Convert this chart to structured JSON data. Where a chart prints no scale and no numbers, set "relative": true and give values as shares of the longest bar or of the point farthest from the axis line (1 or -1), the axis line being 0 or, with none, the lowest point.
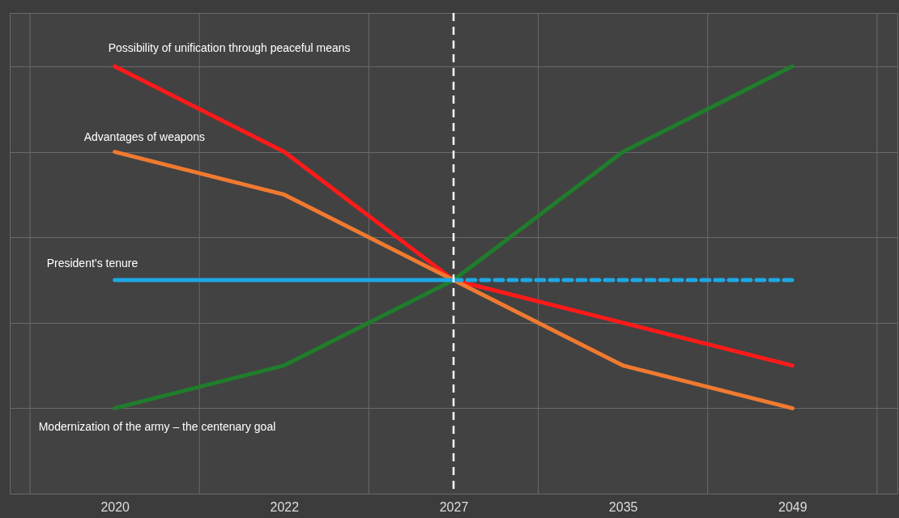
{
  "chart_data": {
    "type": "line",
    "relative": true,
    "categories": [
      "2020",
      "2022",
      "2027",
      "2035",
      "2049"
    ],
    "series": [
      {
        "name": "Possibility of unification through peaceful means",
        "color": "#ff1a1a",
        "values": [
          1,
          0.8,
          0.5,
          0.4,
          0.3
        ]
      },
      {
        "name": "Advantages of weapons",
        "color": "#f07a30",
        "values": [
          0.8,
          0.7,
          0.5,
          0.3,
          0.2
        ]
      },
      {
        "name": "Modernization of the army – the centenary goal",
        "color": "#1f7d2c",
        "values": [
          0.2,
          0.3,
          0.5,
          0.8,
          1
        ]
      },
      {
        "name": "President’s tenure",
        "color": "#1ea7e4",
        "values": [
          0.5,
          0.5,
          0.5,
          null,
          null
        ]
      },
      {
        "color": "#1ea7e4",
        "values": [
          null,
          null,
          0.5,
          0.5,
          0.5
        ],
        "line_style": "dashed"
      }
    ],
    "ref_lines": [
      {
        "axis": "x",
        "value": "2027",
        "color": "#ffffff",
        "line_style": "dashed"
      }
    ],
    "grid": true,
    "tick_labels": "x",
    "legend": false,
    "marker": "none",
    "line_style": "solid"
  }
}
